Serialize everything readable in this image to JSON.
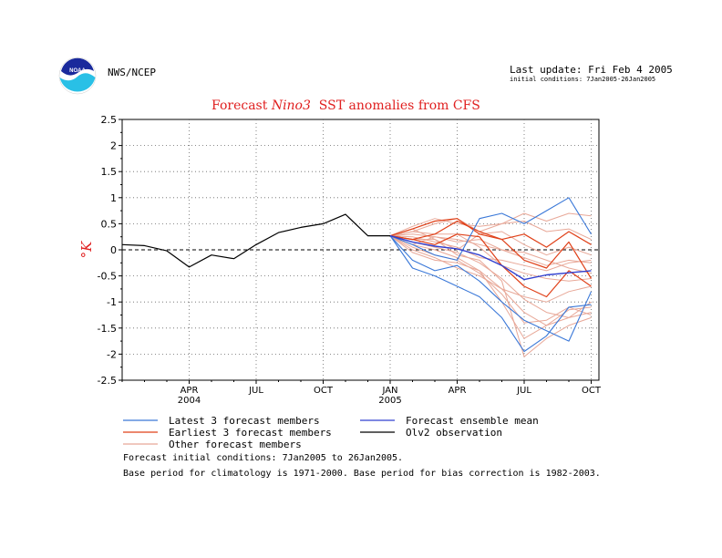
{
  "header": {
    "org": "NWS/NCEP",
    "last_update": "Last update: Fri Feb  4 2005",
    "initial_conditions": "initial conditions: 7Jan2005-26Jan2005"
  },
  "logo": {
    "text": "NOAA",
    "icon": "noaa-logo"
  },
  "footer": {
    "line1": "Forecast initial conditions: 7Jan2005 to 26Jan2005.",
    "line2": "Base period for climatology is 1971-2000. Base period for bias correction is 1982-2003."
  },
  "colors": {
    "latest": "#3a78d8",
    "earliest": "#e04018",
    "other": "#e8a898",
    "mean": "#3040d0",
    "obs": "#000000",
    "title": "#e02020",
    "ylabel": "#e02020"
  },
  "chart_data": {
    "type": "line",
    "title": {
      "part1": "Forecast ",
      "italic": "Nino3",
      "part2": "  SST anomalies from CFS"
    },
    "ylabel": "°K",
    "ylim": [
      -2.5,
      2.5
    ],
    "y_ticks": [
      "2.5",
      "2",
      "1.5",
      "1",
      "0.5",
      "0",
      "-0.5",
      "-1",
      "-1.5",
      "-2",
      "-2.5"
    ],
    "x_ticks": [
      {
        "label": "APR",
        "sub": "2004"
      },
      {
        "label": "JUL",
        "sub": ""
      },
      {
        "label": "OCT",
        "sub": ""
      },
      {
        "label": "JAN",
        "sub": "2005"
      },
      {
        "label": "APR",
        "sub": ""
      },
      {
        "label": "JUL",
        "sub": ""
      },
      {
        "label": "OCT",
        "sub": ""
      }
    ],
    "x_months": [
      "2004-01",
      "2004-02",
      "2004-03",
      "2004-04",
      "2004-05",
      "2004-06",
      "2004-07",
      "2004-08",
      "2004-09",
      "2004-10",
      "2004-11",
      "2004-12",
      "2005-01",
      "2005-02",
      "2005-03",
      "2005-04",
      "2005-05",
      "2005-06",
      "2005-07",
      "2005-08",
      "2005-09",
      "2005-10"
    ],
    "grid": true,
    "legend": [
      {
        "label": "Latest 3 forecast members",
        "color": "#3a78d8"
      },
      {
        "label": "Forecast ensemble mean",
        "color": "#3040d0"
      },
      {
        "label": "Earliest 3 forecast members",
        "color": "#e04018"
      },
      {
        "label": "Olv2 observation",
        "color": "#000000"
      },
      {
        "label": "Other forecast members",
        "color": "#e8a898"
      }
    ],
    "observation": {
      "name": "Olv2 observation",
      "x": [
        "2004-01",
        "2004-02",
        "2004-03",
        "2004-04",
        "2004-05",
        "2004-06",
        "2004-07",
        "2004-08",
        "2004-09",
        "2004-10",
        "2004-11",
        "2004-12",
        "2005-01"
      ],
      "y": [
        0.1,
        0.08,
        -0.02,
        -0.33,
        -0.1,
        -0.17,
        0.1,
        0.33,
        0.43,
        0.5,
        0.68,
        0.27,
        0.27
      ]
    },
    "forecast_x": [
      "2005-01",
      "2005-02",
      "2005-03",
      "2005-04",
      "2005-05",
      "2005-06",
      "2005-07",
      "2005-08",
      "2005-09",
      "2005-10"
    ],
    "ensemble_mean": {
      "name": "Forecast ensemble mean",
      "y": [
        0.27,
        0.15,
        0.07,
        0.02,
        -0.1,
        -0.3,
        -0.57,
        -0.48,
        -0.44,
        -0.4
      ]
    },
    "latest": [
      {
        "y": [
          0.27,
          0.1,
          -0.1,
          -0.2,
          0.6,
          0.7,
          0.5,
          0.75,
          1.0,
          0.3
        ]
      },
      {
        "y": [
          0.27,
          -0.2,
          -0.4,
          -0.3,
          -0.6,
          -1.0,
          -1.35,
          -1.55,
          -1.75,
          -0.8
        ]
      },
      {
        "y": [
          0.27,
          -0.35,
          -0.5,
          -0.7,
          -0.9,
          -1.3,
          -1.95,
          -1.65,
          -1.1,
          -1.05
        ]
      }
    ],
    "earliest": [
      {
        "y": [
          0.27,
          0.4,
          0.55,
          0.6,
          0.3,
          0.2,
          0.3,
          0.05,
          0.35,
          0.1
        ]
      },
      {
        "y": [
          0.27,
          0.2,
          0.3,
          0.55,
          0.35,
          0.2,
          -0.2,
          -0.35,
          0.15,
          -0.55
        ]
      },
      {
        "y": [
          0.27,
          0.2,
          0.1,
          0.3,
          0.25,
          -0.3,
          -0.7,
          -0.9,
          -0.4,
          -0.7
        ]
      }
    ],
    "others": [
      {
        "y": [
          0.27,
          0.45,
          0.6,
          0.5,
          0.45,
          0.5,
          0.55,
          0.35,
          0.4,
          0.2
        ]
      },
      {
        "y": [
          0.27,
          0.35,
          0.5,
          0.6,
          0.35,
          0.5,
          0.7,
          0.55,
          0.7,
          0.65
        ]
      },
      {
        "y": [
          0.27,
          0.3,
          0.25,
          0.2,
          0.1,
          0.0,
          -0.15,
          -0.3,
          -0.2,
          -0.25
        ]
      },
      {
        "y": [
          0.27,
          0.1,
          0.0,
          -0.15,
          -0.4,
          -0.75,
          -1.2,
          -1.45,
          -1.15,
          -1.1
        ]
      },
      {
        "y": [
          0.27,
          0.15,
          0.05,
          -0.05,
          -0.25,
          -0.55,
          -0.95,
          -1.2,
          -1.3,
          -1.2
        ]
      },
      {
        "y": [
          0.27,
          0.05,
          -0.1,
          -0.2,
          -0.45,
          -0.85,
          -1.4,
          -1.35,
          -1.1,
          -1.25
        ]
      },
      {
        "y": [
          0.27,
          -0.05,
          -0.2,
          -0.25,
          -0.4,
          -1.0,
          -1.7,
          -1.45,
          -1.3,
          -1.0
        ]
      },
      {
        "y": [
          0.27,
          0.2,
          0.2,
          -0.1,
          -0.2,
          -0.6,
          -2.05,
          -1.7,
          -1.45,
          -1.3
        ]
      },
      {
        "y": [
          0.27,
          0.35,
          0.3,
          0.3,
          0.05,
          -0.3,
          -0.45,
          -0.55,
          -0.6,
          -0.55
        ]
      },
      {
        "y": [
          0.27,
          0.25,
          0.15,
          0.05,
          -0.15,
          -0.2,
          -0.3,
          -0.4,
          -0.25,
          -0.2
        ]
      },
      {
        "y": [
          0.27,
          0.0,
          -0.15,
          -0.35,
          -0.5,
          -0.75,
          -0.9,
          -1.0,
          -0.8,
          -0.7
        ]
      },
      {
        "y": [
          0.27,
          0.4,
          0.2,
          0.0,
          0.3,
          0.35,
          0.1,
          -0.1,
          0.05,
          -0.1
        ]
      },
      {
        "y": [
          0.27,
          0.1,
          0.25,
          0.15,
          0.2,
          0.0,
          -0.05,
          -0.2,
          -0.35,
          -0.45
        ]
      }
    ]
  }
}
